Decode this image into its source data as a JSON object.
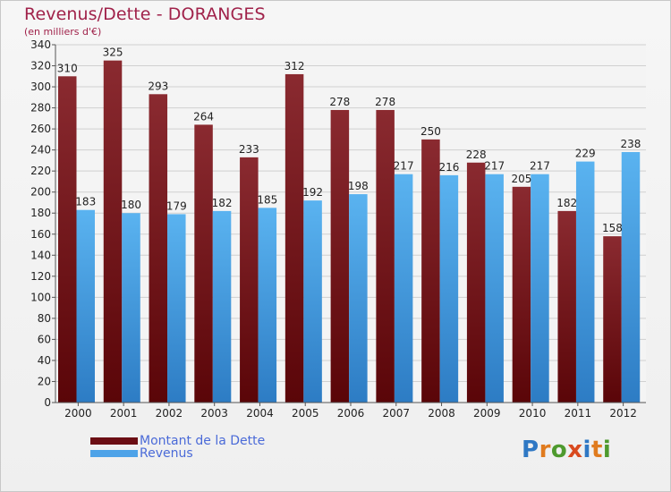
{
  "header": {
    "title": "Revenus/Dette - DORANGES",
    "subtitle": "(en milliers d'€)"
  },
  "legend": {
    "items": [
      {
        "label": "Montant de la Dette",
        "color": "#6b0e14"
      },
      {
        "label": "Revenus",
        "color": "#4ea3e8"
      }
    ]
  },
  "logo": {
    "text": "Proxiti",
    "letter_colors": [
      "#2f78c4",
      "#e07b1e",
      "#4e9a2e",
      "#d94a1f",
      "#2f78c4",
      "#e07b1e",
      "#4e9a2e"
    ]
  },
  "colors": {
    "debt_top": "#8a2a30",
    "debt_bottom": "#5a0508",
    "revenue_top": "#5ab3f0",
    "revenue_bottom": "#2d7cc4",
    "grid": "#d0d0d0",
    "axis_text": "#222222",
    "frame_bg": "#f2f2f2"
  },
  "chart_data": {
    "type": "bar",
    "title": "Revenus/Dette - DORANGES",
    "ylabel": "(en milliers d'€)",
    "categories": [
      "2000",
      "2001",
      "2002",
      "2003",
      "2004",
      "2005",
      "2006",
      "2007",
      "2008",
      "2009",
      "2010",
      "2011",
      "2012"
    ],
    "series": [
      {
        "name": "Montant de la Dette",
        "values": [
          310,
          325,
          293,
          264,
          233,
          312,
          278,
          278,
          250,
          228,
          205,
          182,
          158
        ]
      },
      {
        "name": "Revenus",
        "values": [
          183,
          180,
          179,
          182,
          185,
          192,
          198,
          217,
          216,
          217,
          217,
          229,
          238
        ]
      }
    ],
    "ylim": [
      0,
      340
    ],
    "yticks": [
      0,
      20,
      40,
      60,
      80,
      100,
      120,
      140,
      160,
      180,
      200,
      220,
      240,
      260,
      280,
      300,
      320,
      340
    ],
    "grid": true,
    "legend_position": "bottom-left"
  }
}
